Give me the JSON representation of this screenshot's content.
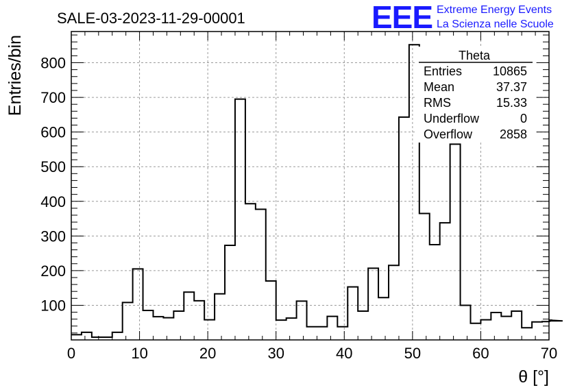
{
  "title": "SALE-03-2023-11-29-00001",
  "logo": {
    "mark": "EEE",
    "line1": "Extreme Energy Events",
    "line2": "La Scienza nelle Scuole"
  },
  "stats": {
    "name": "Theta",
    "rows": [
      {
        "label": "Entries",
        "value": "10865"
      },
      {
        "label": "Mean",
        "value": "37.37"
      },
      {
        "label": "RMS",
        "value": "15.33"
      },
      {
        "label": "Underflow",
        "value": "0"
      },
      {
        "label": "Overflow",
        "value": "2858"
      }
    ]
  },
  "chart_data": {
    "type": "bar",
    "histogram": true,
    "xlabel": "θ [°]",
    "ylabel": "Entries/bin",
    "xlim": [
      0,
      70
    ],
    "ylim": [
      0,
      890
    ],
    "bin_width": 1.5,
    "x_ticks": [
      0,
      10,
      20,
      30,
      40,
      50,
      60,
      70
    ],
    "y_ticks": [
      100,
      200,
      300,
      400,
      500,
      600,
      700,
      800
    ],
    "grid": true,
    "values": [
      15,
      22,
      8,
      8,
      22,
      108,
      205,
      85,
      67,
      64,
      83,
      138,
      113,
      58,
      133,
      273,
      695,
      393,
      377,
      170,
      57,
      63,
      112,
      38,
      38,
      68,
      38,
      153,
      83,
      207,
      122,
      215,
      643,
      852,
      365,
      275,
      338,
      565,
      100,
      48,
      58,
      79,
      68,
      83,
      35,
      52,
      53,
      57,
      55
    ]
  }
}
